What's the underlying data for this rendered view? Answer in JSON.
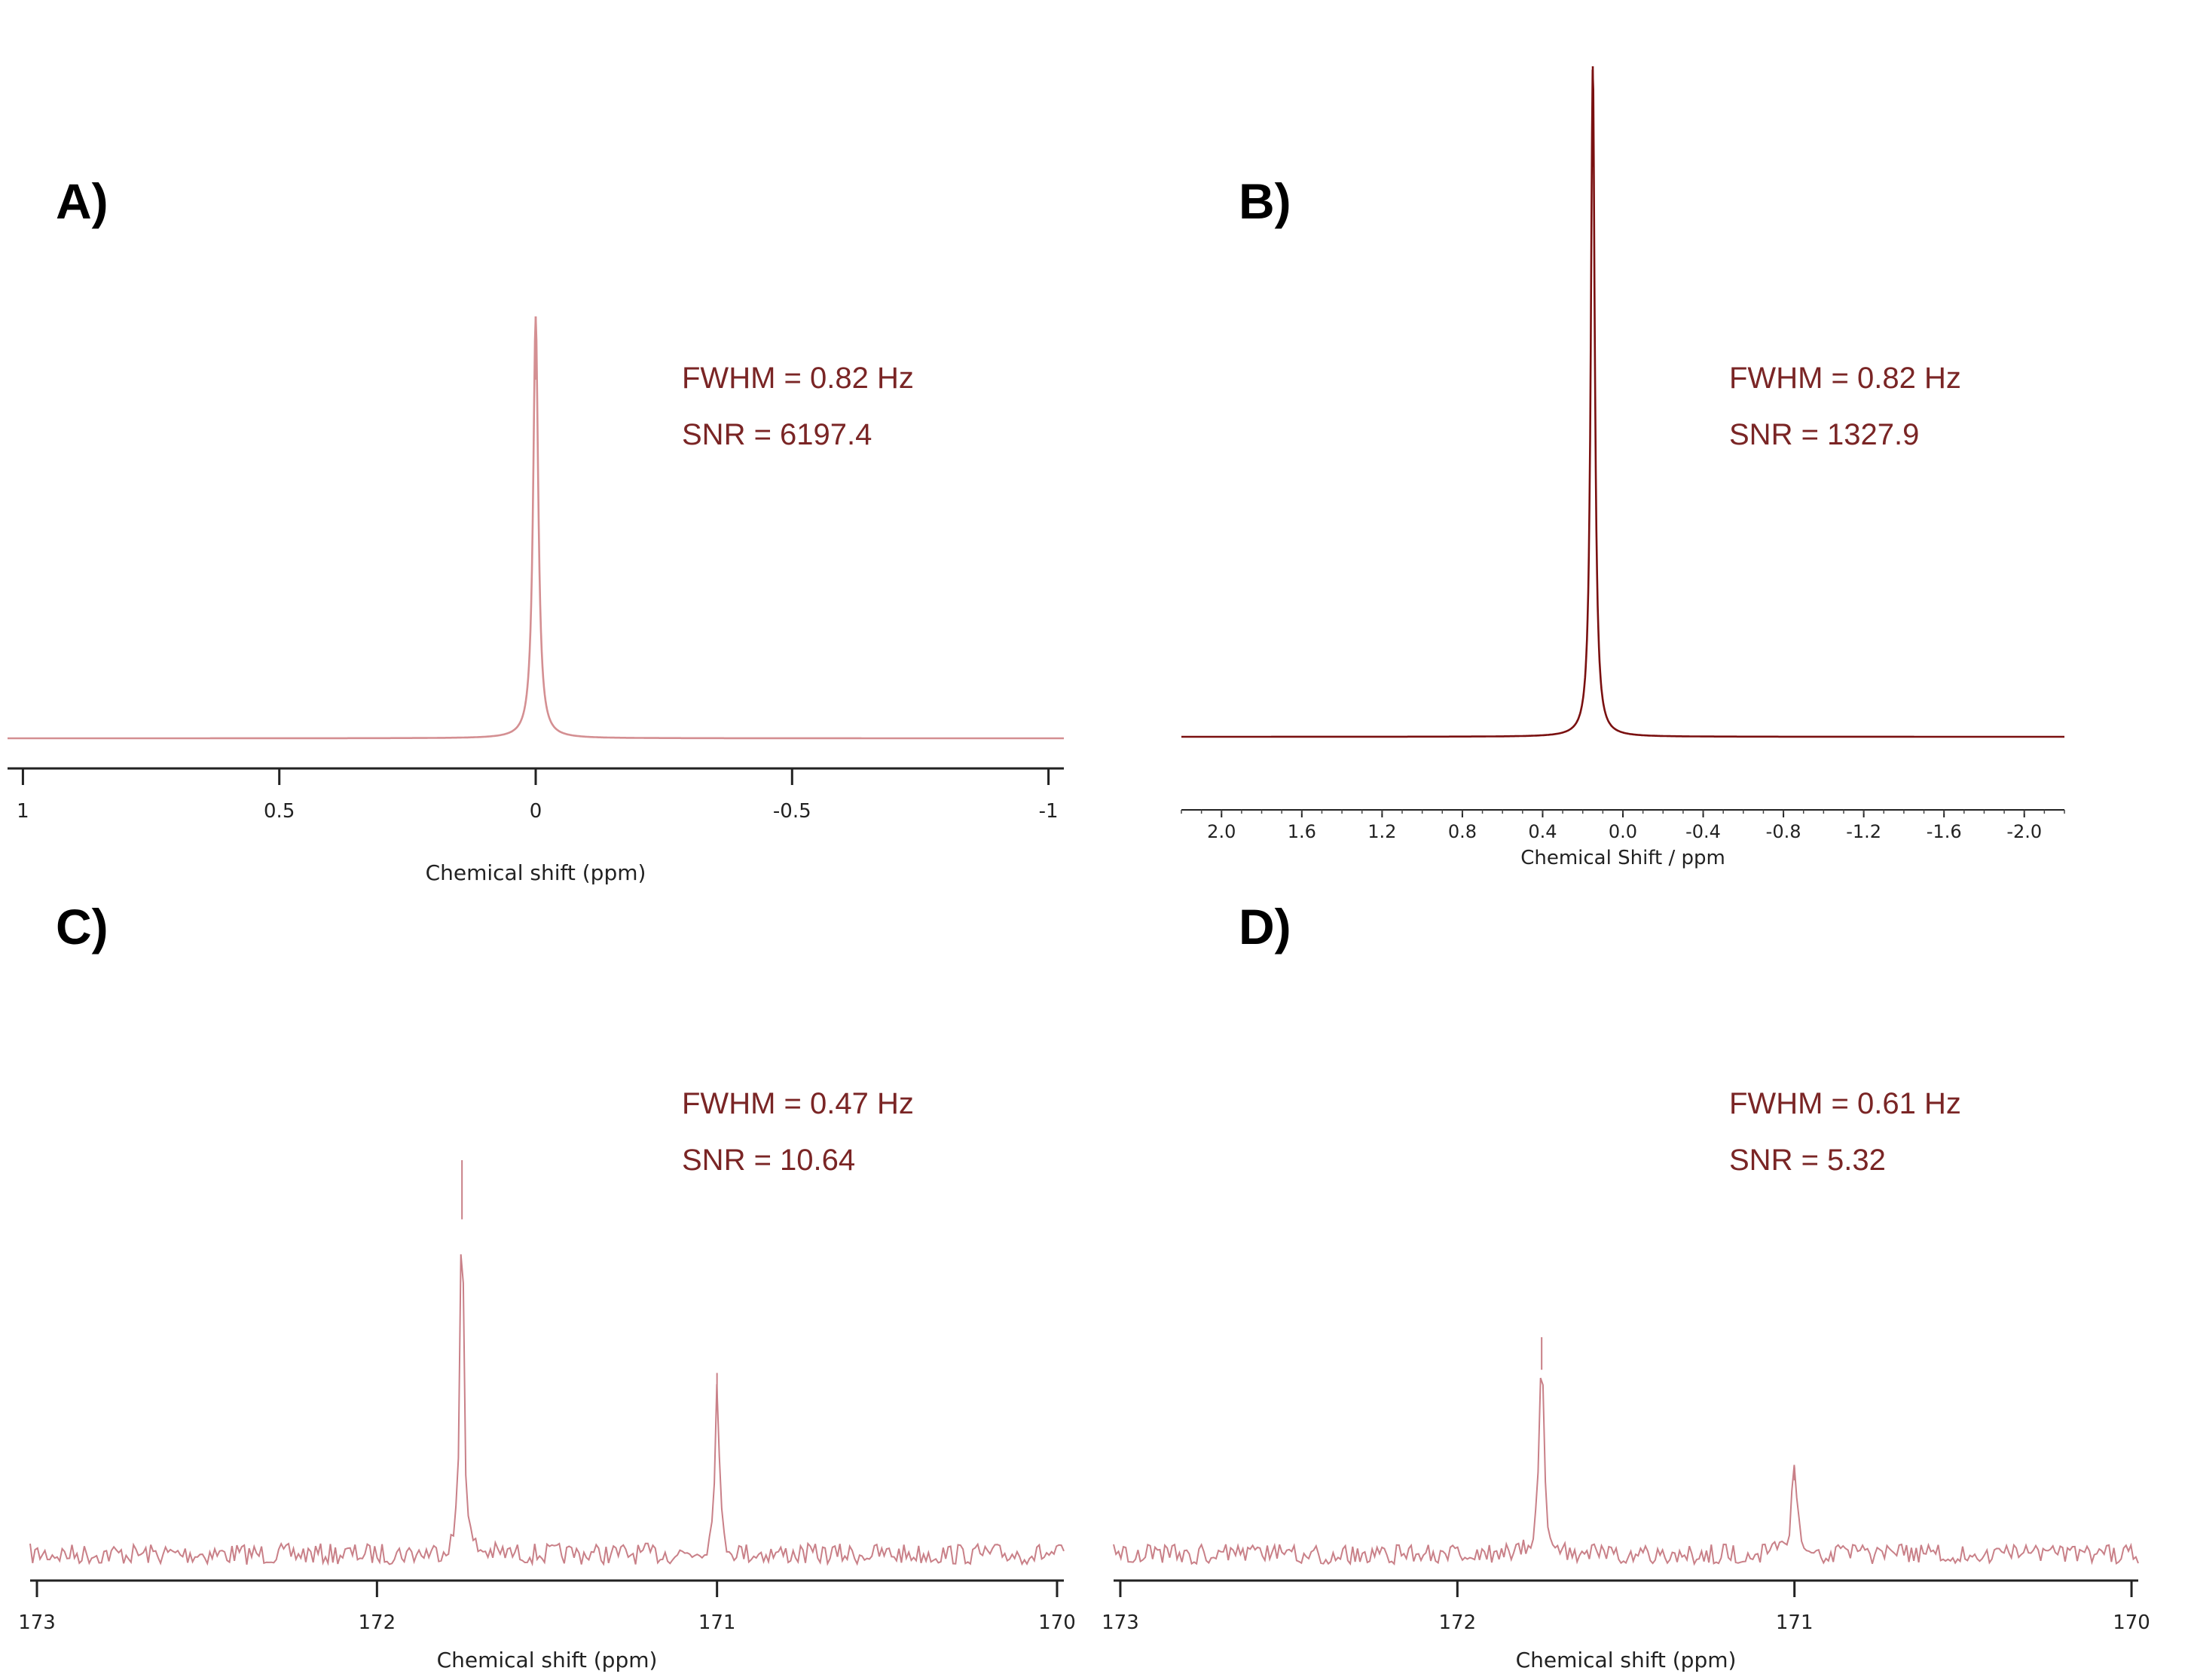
{
  "chart_data": [
    {
      "panel": "A)",
      "type": "line",
      "xlabel": "Chemical shift (ppm)",
      "x_ticks": [
        "1",
        "0.5",
        "0",
        "-0.5",
        "-1"
      ],
      "xlim": [
        1.03,
        -1.03
      ],
      "x_reversed": true,
      "line_color": "#d48f92",
      "peaks": [
        {
          "x": 0.0,
          "height": 1.0,
          "hwhm": 0.006
        }
      ],
      "annotations": [
        "FWHM = 0.82 Hz",
        "SNR = 6197.4"
      ]
    },
    {
      "panel": "B)",
      "type": "line",
      "xlabel": "Chemical Shift / ppm",
      "x_ticks": [
        "2.0",
        "1.6",
        "1.2",
        "0.8",
        "0.4",
        "0.0",
        "-0.4",
        "-0.8",
        "-1.2",
        "-1.6",
        "-2.0"
      ],
      "xlim": [
        2.2,
        -2.2
      ],
      "x_reversed": true,
      "line_color": "#7a1010",
      "peaks": [
        {
          "x": 0.15,
          "height": 1.0,
          "hwhm": 0.012
        }
      ],
      "annotations": [
        "FWHM = 0.82 Hz",
        "SNR = 1327.9"
      ]
    },
    {
      "panel": "C)",
      "type": "line",
      "xlabel": "Chemical shift (ppm)",
      "x_ticks": [
        "173",
        "172",
        "171",
        "170"
      ],
      "xlim": [
        173.02,
        169.98
      ],
      "x_reversed": true,
      "line_color": "#c98088",
      "peaks": [
        {
          "x": 171.75,
          "height": 1.0,
          "hwhm": 0.006
        },
        {
          "x": 171.0,
          "height": 0.46,
          "hwhm": 0.007
        }
      ],
      "annotations": [
        "FWHM = 0.47 Hz",
        "SNR = 10.64"
      ]
    },
    {
      "panel": "D)",
      "type": "line",
      "xlabel": "Chemical shift (ppm)",
      "x_ticks": [
        "173",
        "172",
        "171",
        "170"
      ],
      "xlim": [
        173.02,
        169.98
      ],
      "x_reversed": true,
      "line_color": "#c98088",
      "peaks": [
        {
          "x": 171.75,
          "height": 1.0,
          "hwhm": 0.008
        },
        {
          "x": 171.0,
          "height": 0.4,
          "hwhm": 0.01
        }
      ],
      "annotations": [
        "FWHM = 0.61 Hz",
        "SNR = 5.32"
      ]
    }
  ]
}
